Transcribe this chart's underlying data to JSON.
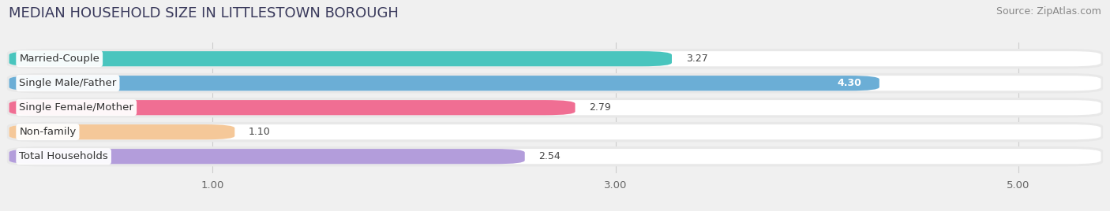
{
  "title": "MEDIAN HOUSEHOLD SIZE IN LITTLESTOWN BOROUGH",
  "source": "Source: ZipAtlas.com",
  "categories": [
    "Married-Couple",
    "Single Male/Father",
    "Single Female/Mother",
    "Non-family",
    "Total Households"
  ],
  "values": [
    3.27,
    4.3,
    2.79,
    1.1,
    2.54
  ],
  "bar_colors": [
    "#49C5BE",
    "#6BAED6",
    "#F06E93",
    "#F5C899",
    "#B39DDB"
  ],
  "value_labels": [
    "3.27",
    "4.30",
    "2.79",
    "1.10",
    "2.54"
  ],
  "value_label_colors": [
    "#444444",
    "#ffffff",
    "#444444",
    "#444444",
    "#444444"
  ],
  "xlim": [
    0,
    5.4
  ],
  "xmin": 0,
  "xticks": [
    1.0,
    3.0,
    5.0
  ],
  "xtick_labels": [
    "1.00",
    "3.00",
    "5.00"
  ],
  "background_color": "#f0f0f0",
  "chart_bg_color": "#ffffff",
  "title_fontsize": 13,
  "source_fontsize": 9,
  "label_fontsize": 9.5,
  "value_fontsize": 9
}
